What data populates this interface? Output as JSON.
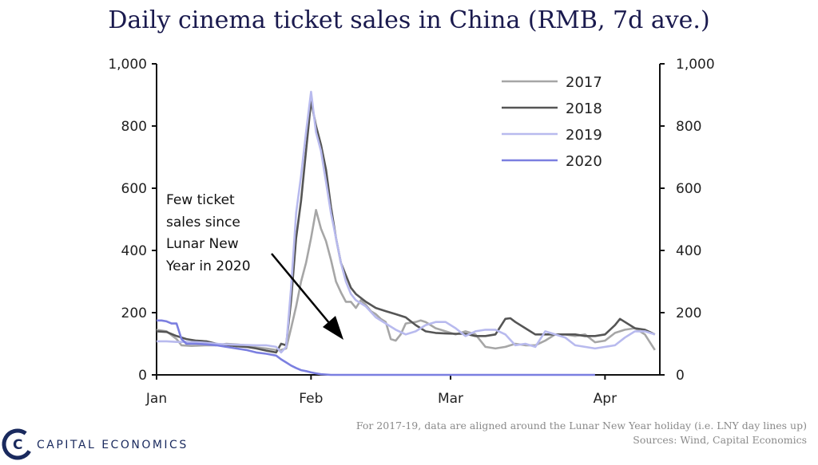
{
  "chart_data": {
    "type": "line",
    "title": "Daily cinema ticket sales in China (RMB, 7d ave.)",
    "xlabel": "",
    "ylabel": "",
    "ylim": [
      0,
      1000
    ],
    "xlim": [
      0,
      101
    ],
    "y_ticks": [
      "0",
      "200",
      "400",
      "600",
      "800",
      "1,000"
    ],
    "y_tick_values": [
      0,
      200,
      400,
      600,
      800,
      1000
    ],
    "x_ticks": [
      {
        "label": "Jan",
        "x": 0
      },
      {
        "label": "Feb",
        "x": 31
      },
      {
        "label": "Mar",
        "x": 59
      },
      {
        "label": "Apr",
        "x": 90
      }
    ],
    "legend_position": "top-right",
    "series": [
      {
        "name": "2017",
        "color": "#a6a6a6",
        "points": [
          [
            0,
            145
          ],
          [
            2,
            140
          ],
          [
            4,
            115
          ],
          [
            5,
            95
          ],
          [
            7,
            93
          ],
          [
            10,
            95
          ],
          [
            12,
            95
          ],
          [
            14,
            100
          ],
          [
            16,
            98
          ],
          [
            18,
            95
          ],
          [
            20,
            88
          ],
          [
            22,
            85
          ],
          [
            24,
            80
          ],
          [
            25,
            80
          ],
          [
            26,
            85
          ],
          [
            27,
            150
          ],
          [
            28,
            220
          ],
          [
            29,
            300
          ],
          [
            30,
            360
          ],
          [
            31,
            440
          ],
          [
            32,
            530
          ],
          [
            33,
            470
          ],
          [
            34,
            430
          ],
          [
            35,
            370
          ],
          [
            36,
            300
          ],
          [
            37,
            265
          ],
          [
            38,
            235
          ],
          [
            39,
            235
          ],
          [
            40,
            215
          ],
          [
            41,
            240
          ],
          [
            42,
            225
          ],
          [
            43,
            205
          ],
          [
            44,
            195
          ],
          [
            45,
            180
          ],
          [
            46,
            170
          ],
          [
            47,
            115
          ],
          [
            48,
            110
          ],
          [
            49,
            130
          ],
          [
            50,
            165
          ],
          [
            51,
            168
          ],
          [
            52,
            170
          ],
          [
            53,
            175
          ],
          [
            54,
            170
          ],
          [
            55,
            160
          ],
          [
            56,
            150
          ],
          [
            57,
            145
          ],
          [
            58,
            140
          ],
          [
            60,
            130
          ],
          [
            62,
            140
          ],
          [
            64,
            130
          ],
          [
            66,
            90
          ],
          [
            68,
            85
          ],
          [
            70,
            90
          ],
          [
            72,
            100
          ],
          [
            74,
            95
          ],
          [
            76,
            95
          ],
          [
            78,
            110
          ],
          [
            80,
            130
          ],
          [
            82,
            130
          ],
          [
            84,
            125
          ],
          [
            86,
            130
          ],
          [
            88,
            105
          ],
          [
            90,
            110
          ],
          [
            92,
            135
          ],
          [
            94,
            145
          ],
          [
            96,
            150
          ],
          [
            98,
            130
          ],
          [
            100,
            80
          ]
        ]
      },
      {
        "name": "2018",
        "color": "#555555",
        "points": [
          [
            0,
            140
          ],
          [
            2,
            138
          ],
          [
            4,
            125
          ],
          [
            6,
            115
          ],
          [
            8,
            110
          ],
          [
            10,
            108
          ],
          [
            12,
            100
          ],
          [
            14,
            96
          ],
          [
            16,
            92
          ],
          [
            18,
            90
          ],
          [
            20,
            85
          ],
          [
            22,
            78
          ],
          [
            24,
            72
          ],
          [
            25,
            100
          ],
          [
            26,
            95
          ],
          [
            27,
            240
          ],
          [
            28,
            440
          ],
          [
            29,
            560
          ],
          [
            30,
            720
          ],
          [
            31,
            880
          ],
          [
            32,
            800
          ],
          [
            33,
            740
          ],
          [
            34,
            660
          ],
          [
            35,
            540
          ],
          [
            36,
            440
          ],
          [
            37,
            360
          ],
          [
            38,
            320
          ],
          [
            39,
            280
          ],
          [
            40,
            260
          ],
          [
            42,
            235
          ],
          [
            44,
            215
          ],
          [
            46,
            205
          ],
          [
            48,
            195
          ],
          [
            50,
            185
          ],
          [
            52,
            160
          ],
          [
            54,
            140
          ],
          [
            56,
            135
          ],
          [
            58,
            133
          ],
          [
            60,
            132
          ],
          [
            62,
            132
          ],
          [
            64,
            125
          ],
          [
            66,
            125
          ],
          [
            68,
            130
          ],
          [
            70,
            180
          ],
          [
            71,
            182
          ],
          [
            72,
            170
          ],
          [
            74,
            150
          ],
          [
            76,
            130
          ],
          [
            78,
            130
          ],
          [
            80,
            130
          ],
          [
            82,
            130
          ],
          [
            84,
            130
          ],
          [
            86,
            125
          ],
          [
            88,
            125
          ],
          [
            90,
            130
          ],
          [
            92,
            160
          ],
          [
            93,
            180
          ],
          [
            94,
            170
          ],
          [
            96,
            150
          ],
          [
            98,
            145
          ],
          [
            100,
            130
          ]
        ]
      },
      {
        "name": "2019",
        "color": "#b8baee",
        "points": [
          [
            0,
            108
          ],
          [
            2,
            108
          ],
          [
            4,
            106
          ],
          [
            6,
            106
          ],
          [
            8,
            105
          ],
          [
            10,
            103
          ],
          [
            12,
            100
          ],
          [
            14,
            98
          ],
          [
            16,
            97
          ],
          [
            18,
            96
          ],
          [
            20,
            95
          ],
          [
            22,
            95
          ],
          [
            24,
            90
          ],
          [
            25,
            72
          ],
          [
            26,
            90
          ],
          [
            27,
            280
          ],
          [
            28,
            520
          ],
          [
            29,
            640
          ],
          [
            30,
            780
          ],
          [
            31,
            910
          ],
          [
            32,
            780
          ],
          [
            33,
            720
          ],
          [
            34,
            620
          ],
          [
            35,
            520
          ],
          [
            36,
            440
          ],
          [
            37,
            360
          ],
          [
            38,
            300
          ],
          [
            39,
            260
          ],
          [
            40,
            240
          ],
          [
            42,
            220
          ],
          [
            44,
            185
          ],
          [
            46,
            165
          ],
          [
            48,
            145
          ],
          [
            50,
            130
          ],
          [
            52,
            140
          ],
          [
            54,
            160
          ],
          [
            56,
            170
          ],
          [
            58,
            170
          ],
          [
            60,
            150
          ],
          [
            62,
            125
          ],
          [
            64,
            140
          ],
          [
            66,
            145
          ],
          [
            68,
            145
          ],
          [
            70,
            130
          ],
          [
            72,
            95
          ],
          [
            74,
            100
          ],
          [
            76,
            90
          ],
          [
            78,
            140
          ],
          [
            80,
            130
          ],
          [
            82,
            120
          ],
          [
            84,
            95
          ],
          [
            86,
            90
          ],
          [
            88,
            85
          ],
          [
            90,
            90
          ],
          [
            92,
            95
          ],
          [
            94,
            120
          ],
          [
            96,
            140
          ],
          [
            98,
            140
          ],
          [
            100,
            130
          ]
        ]
      },
      {
        "name": "2020",
        "color": "#7b7fe0",
        "points": [
          [
            0,
            175
          ],
          [
            1,
            175
          ],
          [
            2,
            172
          ],
          [
            3,
            165
          ],
          [
            4,
            165
          ],
          [
            5,
            115
          ],
          [
            6,
            100
          ],
          [
            8,
            100
          ],
          [
            10,
            98
          ],
          [
            12,
            95
          ],
          [
            14,
            90
          ],
          [
            16,
            85
          ],
          [
            18,
            80
          ],
          [
            20,
            72
          ],
          [
            22,
            68
          ],
          [
            24,
            62
          ],
          [
            25,
            50
          ],
          [
            26,
            40
          ],
          [
            27,
            30
          ],
          [
            28,
            22
          ],
          [
            29,
            15
          ],
          [
            30,
            12
          ],
          [
            31,
            8
          ],
          [
            32,
            5
          ],
          [
            33,
            2
          ],
          [
            35,
            0
          ],
          [
            40,
            0
          ],
          [
            50,
            0
          ],
          [
            60,
            0
          ],
          [
            70,
            0
          ],
          [
            80,
            0
          ],
          [
            88,
            0
          ]
        ]
      }
    ],
    "annotation": {
      "lines": [
        "Few ticket",
        "sales since",
        "Lunar New",
        "Year in 2020"
      ]
    }
  },
  "footnote": {
    "line1": "For 2017-19, data are aligned around the Lunar New Year holiday (i.e. LNY day lines up)",
    "line2": "Sources: Wind, Capital Economics"
  },
  "logo": {
    "text": "CAPITAL ECONOMICS",
    "color": "#1a2a5e"
  }
}
